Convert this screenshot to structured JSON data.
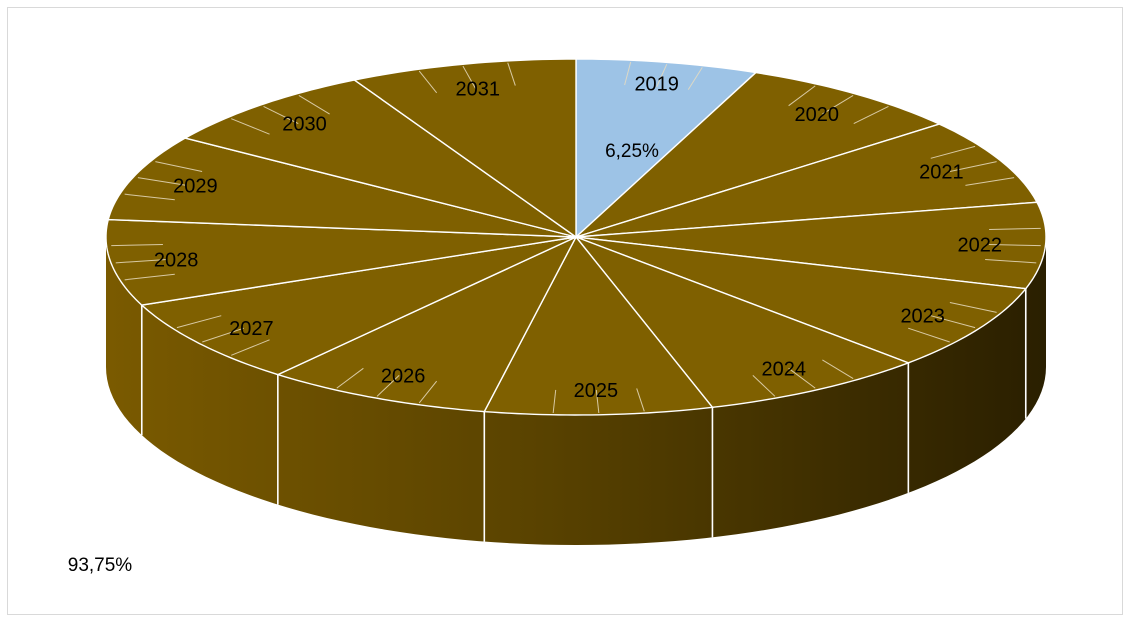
{
  "chart_data": {
    "type": "pie",
    "style": "3d-exploded-segments",
    "categories": [
      "2019",
      "2020",
      "2021",
      "2022",
      "2023",
      "2024",
      "2025",
      "2026",
      "2027",
      "2028",
      "2029",
      "2030",
      "2031"
    ],
    "highlighted": {
      "category": "2019",
      "value_percent": 6.25,
      "label": "6,25%",
      "color": "#9dc3e6"
    },
    "remainder": {
      "value_percent": 93.75,
      "label": "93,75%",
      "color": "#7f6000"
    },
    "colors": {
      "highlight": "#9dc3e6",
      "main": "#7f6000",
      "side_light": "#6b5000",
      "side_dark": "#2e2200",
      "separator": "#ffffff"
    }
  }
}
